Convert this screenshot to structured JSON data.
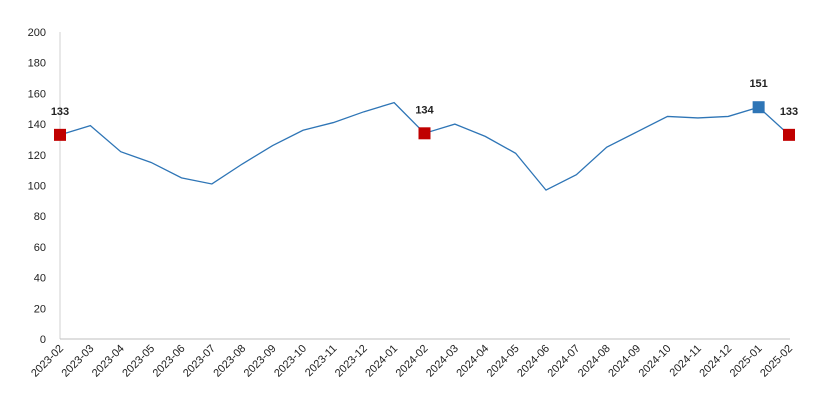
{
  "chart_data": {
    "type": "line",
    "categories": [
      "2023-02",
      "2023-03",
      "2023-04",
      "2023-05",
      "2023-06",
      "2023-07",
      "2023-08",
      "2023-09",
      "2023-10",
      "2023-11",
      "2023-12",
      "2024-01",
      "2024-02",
      "2024-03",
      "2024-04",
      "2024-05",
      "2024-06",
      "2024-07",
      "2024-08",
      "2024-09",
      "2024-10",
      "2024-11",
      "2024-12",
      "2025-01",
      "2025-02"
    ],
    "values": [
      133,
      139,
      122,
      115,
      105,
      101,
      114,
      126,
      136,
      141,
      148,
      154,
      134,
      140,
      132,
      121,
      97,
      107,
      125,
      135,
      145,
      144,
      145,
      151,
      133
    ],
    "value_labels": [
      "133",
      null,
      null,
      null,
      null,
      null,
      null,
      null,
      null,
      null,
      null,
      null,
      "134",
      null,
      null,
      null,
      null,
      null,
      null,
      null,
      null,
      null,
      null,
      "151",
      "133"
    ],
    "marker_colors": [
      "#c00000",
      null,
      null,
      null,
      null,
      null,
      null,
      null,
      null,
      null,
      null,
      null,
      "#c00000",
      null,
      null,
      null,
      null,
      null,
      null,
      null,
      null,
      null,
      null,
      "#2e75b6",
      "#c00000"
    ],
    "color": "#2e75b6",
    "ylim": [
      0,
      200
    ],
    "yticks": [
      0,
      20,
      40,
      60,
      80,
      100,
      120,
      140,
      160,
      180,
      200
    ],
    "grid": false
  }
}
